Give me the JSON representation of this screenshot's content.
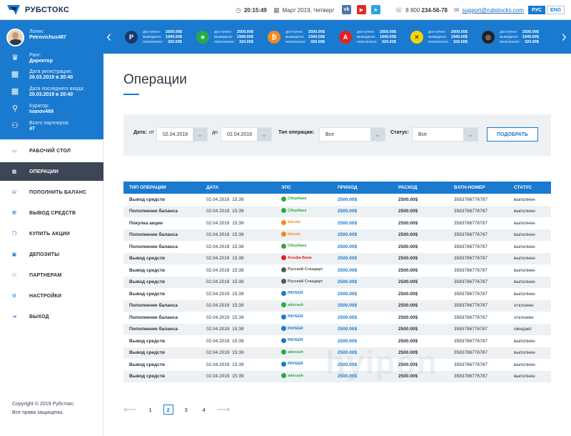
{
  "brand": {
    "name": "РУБСТОКС"
  },
  "header": {
    "time": "20:15:49",
    "date": "Март 2019, Четверг",
    "phone_prefix": "8 800",
    "phone_main": "234-56-78",
    "email": "support@rubstocks.com",
    "lang_active": "РУС",
    "lang_other": "ENG",
    "social": [
      "vk-icon",
      "youtube-icon",
      "telegram-icon"
    ]
  },
  "profile": {
    "login_label": "Логин:",
    "login": "Petrovichus487",
    "rank_label": "Ранг:",
    "rank": "Директор",
    "reg_label": "Дата регистрации:",
    "reg_date": "20.03.2019 в 20:40",
    "last_label": "Дата последнего входа:",
    "last_date": "20.03.2019 в 20:40",
    "curator_label": "Куратор:",
    "curator": "Ivanov469",
    "partners_label": "Всего партнеров:",
    "partners": "47"
  },
  "menu": [
    {
      "label": "Рабочий стол",
      "icon": "desktop-icon",
      "active": false
    },
    {
      "label": "Операции",
      "icon": "calendar-icon",
      "active": true
    },
    {
      "label": "Пополнить баланс",
      "icon": "coins-icon",
      "active": false
    },
    {
      "label": "Вывод средств",
      "icon": "coins-stack-icon",
      "active": false
    },
    {
      "label": "Купить акции",
      "icon": "shares-icon",
      "active": false
    },
    {
      "label": "Депозиты",
      "icon": "deposit-icon",
      "active": false
    },
    {
      "label": "Партнерам",
      "icon": "partners-icon",
      "active": false
    },
    {
      "label": "Настройки",
      "icon": "gear-icon",
      "active": false
    },
    {
      "label": "Выход",
      "icon": "exit-icon",
      "active": false
    }
  ],
  "copyright": {
    "line1": "Copyright © 2019 Рубстокс.",
    "line2": "Все права защищены."
  },
  "ticker": {
    "labels": [
      "доступно:",
      "выведено:",
      "пополнено:"
    ],
    "items": [
      {
        "icon": "payeer-icon",
        "glyph": "P",
        "color": "#1a3a6b",
        "available": "2500.00$",
        "withdrawn": "1940.00$",
        "deposited": "320.00$"
      },
      {
        "icon": "advcash-icon",
        "glyph": "★",
        "color": "#29a84a",
        "available": "2500.00$",
        "withdrawn": "1940.00$",
        "deposited": "320.00$"
      },
      {
        "icon": "bitcoin-icon",
        "glyph": "₿",
        "color": "#f08a1c",
        "available": "2500.00$",
        "withdrawn": "1940.00$",
        "deposited": "320.00$"
      },
      {
        "icon": "alfabank-icon",
        "glyph": "A",
        "color": "#e3221f",
        "available": "2500.00$",
        "withdrawn": "1940.00$",
        "deposited": "320.00$"
      },
      {
        "icon": "qiwi-icon",
        "glyph": "✕",
        "color": "#f5d500",
        "available": "2500.00$",
        "withdrawn": "1940.00$",
        "deposited": "320.00$"
      },
      {
        "icon": "perfectmoney-icon",
        "glyph": "◎",
        "color": "#222222",
        "available": "2500.00$",
        "withdrawn": "1940.00$",
        "deposited": "320.00$"
      }
    ]
  },
  "page": {
    "title": "Операции"
  },
  "filter": {
    "date_label": "Дата:",
    "from_label": "от",
    "from_value": "02.04.2019",
    "to_label": "до",
    "to_value": "02.04.2019",
    "type_label": "Тип операции:",
    "type_value": "Все",
    "status_label": "Статус:",
    "status_value": "Все",
    "button": "ПОДОБРАТЬ"
  },
  "table": {
    "columns": [
      "Тип операции",
      "Дата",
      "ЭПС",
      "Приход",
      "Расход",
      "BATH-номер",
      "Статус"
    ],
    "rows": [
      {
        "type": "Вывод средств",
        "date": "02.04.2019",
        "time": "15:39",
        "eps": "Сбербанк",
        "eps_color": "#2fa93b",
        "income": "2500.00$",
        "expense": "2500.00$",
        "number": "3583786776787",
        "status": "выполнен",
        "status_kind": "ok"
      },
      {
        "type": "Пополнение баланса",
        "date": "02.04.2019",
        "time": "15:39",
        "eps": "Сбербанк",
        "eps_color": "#2fa93b",
        "income": "2500.00$",
        "expense": "2500.00$",
        "number": "3583786776787",
        "status": "выполнен",
        "status_kind": "ok"
      },
      {
        "type": "Покупка акции",
        "date": "02.04.2019",
        "time": "15:39",
        "eps": "bitcoin",
        "eps_color": "#f08a1c",
        "income": "2500.00$",
        "expense": "2500.00$",
        "number": "3583786776787",
        "status": "выполнен",
        "status_kind": "ok"
      },
      {
        "type": "Пополнение баланса",
        "date": "02.04.2019",
        "time": "15:39",
        "eps": "bitcoin",
        "eps_color": "#f08a1c",
        "income": "2500.00$",
        "expense": "2500.00$",
        "number": "3583786776787",
        "status": "выполнен",
        "status_kind": "ok"
      },
      {
        "type": "Пополнение баланса",
        "date": "02.04.2019",
        "time": "15:39",
        "eps": "Сбербанк",
        "eps_color": "#2fa93b",
        "income": "2500.00$",
        "expense": "2500.00$",
        "number": "3583786776787",
        "status": "выполнен",
        "status_kind": "ok"
      },
      {
        "type": "Вывод средств",
        "date": "02.04.2019",
        "time": "15:39",
        "eps": "Альфа-Банк",
        "eps_color": "#e3221f",
        "income": "2500.00$",
        "expense": "2500.00$",
        "number": "3583786776787",
        "status": "выполнен",
        "status_kind": "ok"
      },
      {
        "type": "Вывод средств",
        "date": "02.04.2019",
        "time": "15:39",
        "eps": "Русский Стандарт",
        "eps_color": "#555555",
        "income": "2500.00$",
        "expense": "2500.00$",
        "number": "3583786776787",
        "status": "выполнен",
        "status_kind": "ok"
      },
      {
        "type": "Вывод средств",
        "date": "02.04.2019",
        "time": "15:39",
        "eps": "Русский Стандарт",
        "eps_color": "#555555",
        "income": "2500.00$",
        "expense": "2500.00$",
        "number": "3583786776787",
        "status": "выполнен",
        "status_kind": "ok"
      },
      {
        "type": "Вывод средств",
        "date": "02.04.2019",
        "time": "15:39",
        "eps": "PAYEER",
        "eps_color": "#1a7ad0",
        "income": "2500.00$",
        "expense": "2500.00$",
        "number": "3583786776787",
        "status": "выполнен",
        "status_kind": "ok"
      },
      {
        "type": "Пополнение баланса",
        "date": "02.04.2019",
        "time": "15:39",
        "eps": "advcash",
        "eps_color": "#29a84a",
        "income": "2500.00$",
        "expense": "2500.00$",
        "number": "3583786776787",
        "status": "отклонен",
        "status_kind": "bad"
      },
      {
        "type": "Пополнение баланса",
        "date": "02.04.2019",
        "time": "15:39",
        "eps": "PAYEER",
        "eps_color": "#1a7ad0",
        "income": "2500.00$",
        "expense": "2500.00$",
        "number": "3583786776787",
        "status": "отклонен",
        "status_kind": "bad"
      },
      {
        "type": "Пополнение баланса",
        "date": "02.04.2019",
        "time": "15:39",
        "eps": "PAYEER",
        "eps_color": "#1a7ad0",
        "income": "2500.00$",
        "expense": "2500.00$",
        "number": "3583786776787",
        "status": "ожидает",
        "status_kind": "wait"
      },
      {
        "type": "Вывод средств",
        "date": "02.04.2019",
        "time": "15:39",
        "eps": "PAYEER",
        "eps_color": "#1a7ad0",
        "income": "2500.00$",
        "expense": "2500.00$",
        "number": "3583786776787",
        "status": "выполнен",
        "status_kind": "ok"
      },
      {
        "type": "Вывод средств",
        "date": "02.04.2019",
        "time": "15:39",
        "eps": "advcash",
        "eps_color": "#29a84a",
        "income": "2500.00$",
        "expense": "2500.00$",
        "number": "3583786776787",
        "status": "выполнен",
        "status_kind": "ok"
      },
      {
        "type": "Вывод средств",
        "date": "02.04.2019",
        "time": "15:39",
        "eps": "PAYEER",
        "eps_color": "#1a7ad0",
        "income": "2500.00$",
        "expense": "2500.00$",
        "number": "3583786776787",
        "status": "выполнен",
        "status_kind": "ok"
      },
      {
        "type": "Вывод средств",
        "date": "02.04.2019",
        "time": "15:39",
        "eps": "advcash",
        "eps_color": "#29a84a",
        "income": "2500.00$",
        "expense": "2500.00$",
        "number": "3583786776787",
        "status": "выполнен",
        "status_kind": "ok"
      }
    ]
  },
  "pagination": {
    "pages": [
      "1",
      "2",
      "3",
      "4"
    ],
    "current": "2"
  },
  "watermark": "hyipon"
}
